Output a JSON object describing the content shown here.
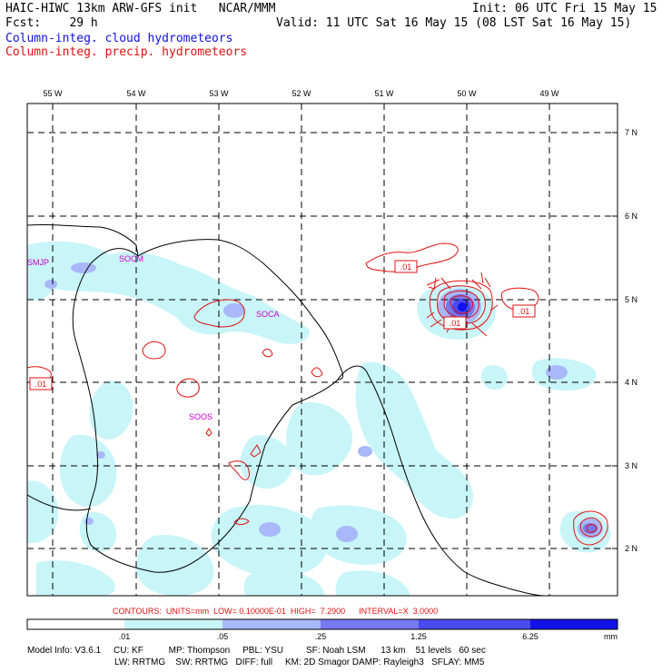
{
  "header": {
    "title": "HAIC-HIWC 13km ARW-GFS init   NCAR/MMM",
    "forecast_label": "Fcst:",
    "forecast_value": "29 h",
    "init": "Init: 06 UTC Fri 15 May 15",
    "valid": "Valid: 11 UTC Sat 16 May 15 (08 LST Sat 16 May 15)",
    "field_cloud": "Column-integ. cloud hydrometeors",
    "field_precip": "Column-integ. precip. hydrometeors"
  },
  "map": {
    "lon_labels": [
      "55 W",
      "54 W",
      "53 W",
      "52 W",
      "51 W",
      "50 W",
      "49 W"
    ],
    "lat_labels": [
      "7 N",
      "6 N",
      "5 N",
      "4 N",
      "3 N",
      "2 N"
    ],
    "stations": [
      "SMJP",
      "SOCM",
      "SOCA",
      "SOOS"
    ],
    "contour_labels": [
      ".01",
      ".01",
      ".01",
      ".01"
    ]
  },
  "contour_info": "CONTOURS:  UNITS=mm  LOW= 0.10000E-01  HIGH=  7.2900      INTERVAL=X  3.0000",
  "colorbar": {
    "tick_labels": [
      ".01",
      ".05",
      ".25",
      "1.25",
      "6.25"
    ],
    "units": "mm",
    "colors": [
      "#ffffff",
      "#c8f5f8",
      "#a8b8f8",
      "#7878f0",
      "#4a4aee",
      "#1212e8"
    ]
  },
  "footer": {
    "line1": "Model Info: V3.6.1     CU: KF          MP: Thompson     PBL: YSU         SF: Noah LSM      13 km    51 levels   60 sec",
    "line2": "LW: RRTMG    SW: RRTMG   DIFF: full     KM: 2D Smagor DAMP: Rayleigh3   SFLAY: MM5"
  }
}
